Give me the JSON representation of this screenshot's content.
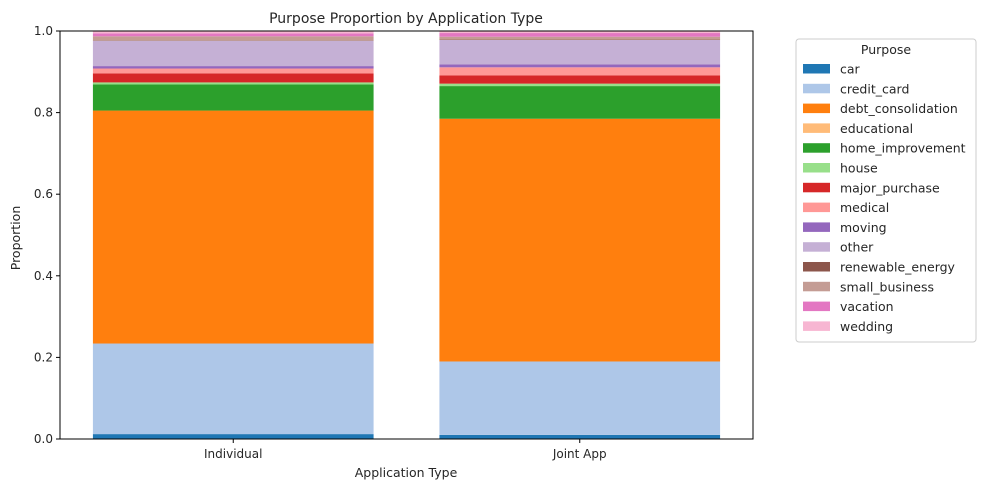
{
  "chart_data": {
    "type": "bar",
    "stacked": true,
    "title": "Purpose Proportion by Application Type",
    "xlabel": "Application Type",
    "ylabel": "Proportion",
    "ylim": [
      0,
      1
    ],
    "yticks": [
      "0.0",
      "0.2",
      "0.4",
      "0.6",
      "0.8",
      "1.0"
    ],
    "categories": [
      "Individual",
      "Joint App"
    ],
    "grid": false,
    "legend": {
      "title": "Purpose",
      "placement": "outside-right"
    },
    "series": [
      {
        "name": "car",
        "color": "#1f77b4",
        "values": [
          0.012,
          0.01
        ]
      },
      {
        "name": "credit_card",
        "color": "#aec7e8",
        "values": [
          0.222,
          0.18
        ]
      },
      {
        "name": "debt_consolidation",
        "color": "#ff7f0e",
        "values": [
          0.571,
          0.595
        ]
      },
      {
        "name": "educational",
        "color": "#ffbb78",
        "values": [
          0.0,
          0.0
        ]
      },
      {
        "name": "home_improvement",
        "color": "#2ca02c",
        "values": [
          0.064,
          0.08
        ]
      },
      {
        "name": "house",
        "color": "#98df8a",
        "values": [
          0.005,
          0.006
        ]
      },
      {
        "name": "major_purchase",
        "color": "#d62728",
        "values": [
          0.022,
          0.02
        ]
      },
      {
        "name": "medical",
        "color": "#ff9896",
        "values": [
          0.012,
          0.02
        ]
      },
      {
        "name": "moving",
        "color": "#9467bd",
        "values": [
          0.006,
          0.007
        ]
      },
      {
        "name": "other",
        "color": "#c5b0d5",
        "values": [
          0.062,
          0.06
        ]
      },
      {
        "name": "renewable_energy",
        "color": "#8c564b",
        "values": [
          0.001,
          0.001
        ]
      },
      {
        "name": "small_business",
        "color": "#c49c94",
        "values": [
          0.01,
          0.007
        ]
      },
      {
        "name": "vacation",
        "color": "#e377c2",
        "values": [
          0.007,
          0.009
        ]
      },
      {
        "name": "wedding",
        "color": "#f7b6d2",
        "values": [
          0.006,
          0.005
        ]
      }
    ]
  }
}
